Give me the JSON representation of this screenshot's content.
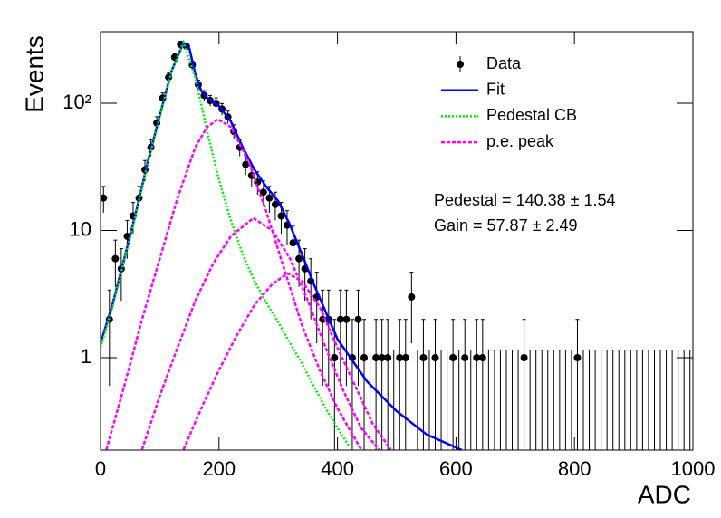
{
  "chart_data": {
    "type": "scatter",
    "xlabel": "ADC",
    "ylabel": "Events",
    "xlim": [
      0,
      1000
    ],
    "xticks": [
      0,
      200,
      400,
      600,
      800,
      1000
    ],
    "ylim": [
      0.188,
      365
    ],
    "log_y": true,
    "yticks": [
      1,
      10,
      {
        "value": 100,
        "label": "10²"
      }
    ],
    "legend": "top-right",
    "annotations": [
      "Pedestal = 140.38 ± 1.54",
      "Gain = 57.87 ± 2.49"
    ],
    "series": [
      {
        "name": "Data",
        "color": "#000000",
        "style": "markers",
        "x": [
          5,
          15,
          25,
          35,
          45,
          55,
          65,
          75,
          85,
          95,
          105,
          115,
          125,
          135,
          145,
          155,
          165,
          175,
          185,
          195,
          205,
          215,
          225,
          235,
          245,
          255,
          265,
          275,
          285,
          295,
          305,
          315,
          325,
          335,
          345,
          355,
          365,
          375,
          385,
          395,
          405,
          415,
          425,
          435,
          445,
          455,
          465,
          475,
          485,
          495,
          505,
          515,
          525,
          535,
          545,
          555,
          565,
          575,
          585,
          595,
          605,
          615,
          625,
          635,
          645,
          655,
          665,
          675,
          685,
          695,
          705,
          715,
          725,
          735,
          745,
          755,
          765,
          775,
          785,
          795,
          805,
          815,
          825,
          835,
          845,
          855,
          865,
          875,
          885,
          895,
          905,
          915,
          925,
          935,
          945,
          955,
          965,
          975,
          985,
          995
        ],
        "values": [
          18,
          2,
          6,
          5,
          9,
          13,
          18,
          30,
          45,
          70,
          110,
          160,
          230,
          290,
          280,
          200,
          140,
          115,
          105,
          100,
          90,
          78,
          60,
          45,
          33,
          27,
          24,
          20,
          18,
          16,
          13,
          11,
          8,
          6,
          5,
          4,
          3,
          2,
          2,
          1,
          2,
          2,
          1,
          2,
          1,
          0,
          1,
          1,
          1,
          0,
          1,
          1,
          3,
          0,
          1,
          0,
          1,
          0,
          0,
          1,
          0,
          1,
          0,
          1,
          1,
          0,
          0,
          0,
          0,
          0,
          0,
          1,
          0,
          0,
          0,
          0,
          0,
          0,
          0,
          0,
          1,
          0,
          0,
          0,
          0,
          0,
          0,
          0,
          0,
          0,
          0,
          0,
          0,
          0,
          0,
          0,
          0,
          0,
          0,
          0
        ],
        "errors": [
          4.2,
          1.4,
          2.4,
          2.2,
          3,
          3.6,
          4.2,
          5.5,
          6.7,
          8.4,
          10.5,
          12.6,
          15.2,
          17,
          16.7,
          14.1,
          11.8,
          10.7,
          10.2,
          10,
          9.5,
          8.8,
          7.7,
          6.7,
          5.7,
          5.2,
          4.9,
          4.5,
          4.2,
          4,
          3.6,
          3.3,
          2.8,
          2.4,
          2.2,
          2,
          1.7,
          1.4,
          1.4,
          1,
          1.4,
          1.4,
          1,
          1.4,
          1,
          1.15,
          1,
          1,
          1,
          1.15,
          1,
          1,
          1.7,
          1.15,
          1,
          1.15,
          1,
          1.15,
          1.15,
          1,
          1.15,
          1,
          1.15,
          1,
          1,
          1.15,
          1.15,
          1.15,
          1.15,
          1.15,
          1.15,
          1,
          1.15,
          1.15,
          1.15,
          1.15,
          1.15,
          1.15,
          1.15,
          1.15,
          1,
          1.15,
          1.15,
          1.15,
          1.15,
          1.15,
          1.15,
          1.15,
          1.15,
          1.15,
          1.15,
          1.15,
          1.15,
          1.15,
          1.15,
          1.15,
          1.15,
          1.15,
          1.15,
          1.15
        ]
      },
      {
        "name": "Fit",
        "color": "#0000ff",
        "style": "solid",
        "curves": [
          {
            "x": [
              0,
              20,
              40,
              60,
              80,
              100,
              120,
              140,
              150,
              160,
              170,
              180,
              200,
              220,
              240,
              260,
              280,
              300,
              320,
              340,
              360,
              380,
              400,
              450,
              500,
              550,
              610
            ],
            "values": [
              1.3,
              2.6,
              6,
              14,
              35,
              80,
              180,
              300,
              270,
              170,
              125,
              110,
              95,
              72,
              45,
              30,
              22,
              17,
              11,
              6.5,
              3.8,
              2.3,
              1.4,
              0.65,
              0.38,
              0.25,
              0.188
            ]
          }
        ]
      },
      {
        "name": "Pedestal CB",
        "color": "#00ee00",
        "style": "dotted",
        "curves": [
          {
            "x": [
              0,
              20,
              40,
              60,
              80,
              100,
              120,
              140,
              160,
              180,
              200,
              220,
              240,
              260,
              280,
              300,
              320,
              340,
              360,
              380,
              400,
              420
            ],
            "values": [
              1.2,
              2.5,
              5.8,
              13.5,
              34,
              78,
              178,
              300,
              160,
              60,
              25,
              12,
              6.5,
              4,
              2.7,
              1.9,
              1.3,
              0.9,
              0.6,
              0.4,
              0.28,
              0.2
            ]
          }
        ]
      },
      {
        "name": "p.e. peak",
        "color": "#ff00ff",
        "style": "dashed",
        "curves": [
          {
            "x": [
              10,
              40,
              70,
              100,
              130,
              160,
              180,
              198,
              220,
              250,
              280,
              310,
              340,
              370,
              400,
              440
            ],
            "values": [
              0.19,
              0.6,
              2,
              6,
              18,
              45,
              65,
              75,
              65,
              35,
              14,
              5,
              1.8,
              0.8,
              0.4,
              0.19
            ]
          },
          {
            "x": [
              70,
              100,
              130,
              160,
              190,
              220,
              258,
              290,
              320,
              350,
              380,
              410,
              440,
              470
            ],
            "values": [
              0.19,
              0.5,
              1.2,
              2.8,
              5.5,
              9,
              12.5,
              10,
              6,
              2.8,
              1.2,
              0.55,
              0.28,
              0.19
            ]
          },
          {
            "x": [
              140,
              170,
              200,
              230,
              260,
              290,
              316,
              340,
              370,
              400,
              430,
              460,
              490
            ],
            "values": [
              0.19,
              0.4,
              0.8,
              1.5,
              2.6,
              3.8,
              4.6,
              4,
              2.5,
              1.2,
              0.6,
              0.3,
              0.19
            ]
          }
        ]
      }
    ]
  }
}
